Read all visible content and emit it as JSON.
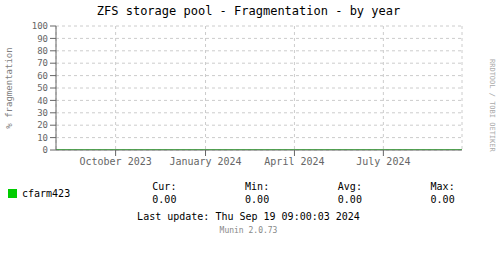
{
  "chart_data": {
    "type": "line",
    "title": "ZFS storage pool - Fragmentation - by year",
    "ylabel": "% fragmentation",
    "x": [
      1690848000,
      1726743603
    ],
    "series": [
      {
        "name": "cfarm423",
        "color": "#00cc00",
        "values": [
          0,
          0
        ]
      }
    ],
    "xlim": [
      1690848000,
      1726743603
    ],
    "xticks": [
      {
        "value": 1696118400,
        "label": "October 2023"
      },
      {
        "value": 1704067200,
        "label": "January 2024"
      },
      {
        "value": 1711929600,
        "label": "April 2024"
      },
      {
        "value": 1719792000,
        "label": "July 2024"
      }
    ],
    "ylim": [
      0,
      100
    ],
    "yticks": [
      0,
      10,
      20,
      30,
      40,
      50,
      60,
      70,
      80,
      90,
      100
    ],
    "grid": true,
    "stats": {
      "labels": [
        "Cur:",
        "Min:",
        "Avg:",
        "Max:"
      ],
      "values": [
        0,
        0,
        0,
        0
      ],
      "value_labels": [
        "0.00",
        "0.00",
        "0.00",
        "0.00"
      ]
    },
    "annotations": [
      "Last update: Thu Sep 19 09:00:03 2024",
      "Munin 2.0.73",
      "RRDTOOL / TOBI OETIKER"
    ]
  }
}
